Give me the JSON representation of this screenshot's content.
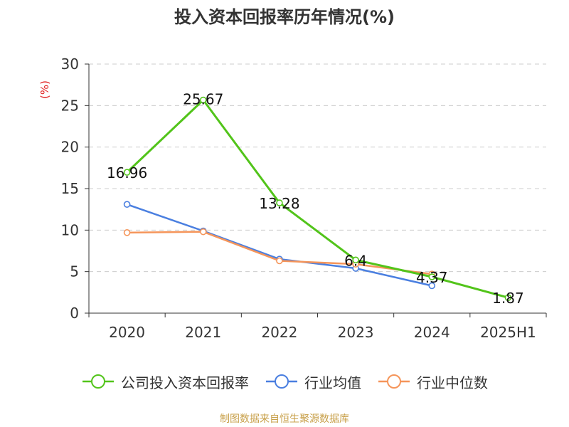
{
  "title": "投入资本回报率历年情况(%)",
  "source": "制图数据来自恒生聚源数据库",
  "chart_data": {
    "type": "line",
    "categories": [
      "2020",
      "2021",
      "2022",
      "2023",
      "2024",
      "2025H1"
    ],
    "ylabel": "(%)",
    "ylim": [
      0,
      30
    ],
    "yticks": [
      0,
      5,
      10,
      15,
      20,
      25,
      30
    ],
    "grid": true,
    "legend_position": "bottom",
    "series": [
      {
        "name": "公司投入资本回报率",
        "color": "#52c41a",
        "values": [
          16.96,
          25.67,
          13.28,
          6.4,
          4.37,
          1.87
        ],
        "labels": [
          "16.96",
          "25.67",
          "13.28",
          "6.4",
          "4.37",
          "1.87"
        ]
      },
      {
        "name": "行业均值",
        "color": "#4a7fe0",
        "values": [
          13.1,
          9.9,
          6.5,
          5.4,
          3.3,
          null
        ]
      },
      {
        "name": "行业中位数",
        "color": "#f5955a",
        "values": [
          9.7,
          9.8,
          6.3,
          5.9,
          4.7,
          null
        ]
      }
    ]
  }
}
